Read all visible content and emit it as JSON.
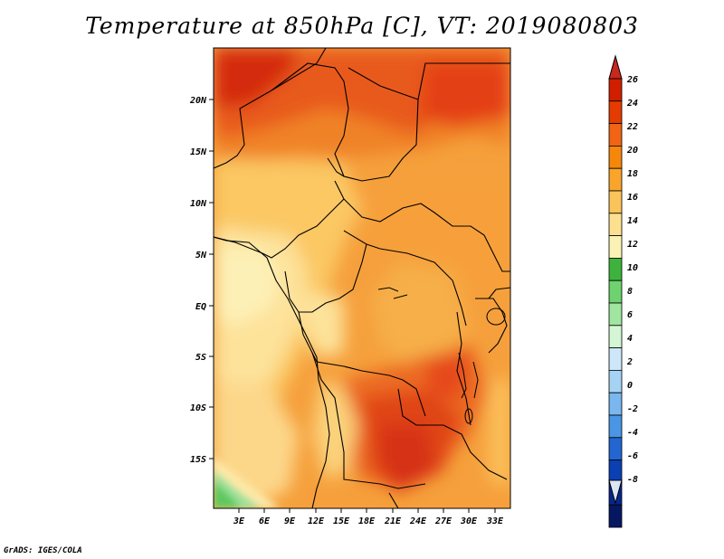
{
  "title": "Temperature at 850hPa [C], VT: 2019080803",
  "credit": "GrADS: IGES/COLA",
  "map": {
    "variable": "Temperature at 850hPa",
    "units": "C",
    "valid_time": "2019080803",
    "lat_ticks": [
      "20N",
      "15N",
      "10N",
      "5N",
      "EQ",
      "5S",
      "10S",
      "15S"
    ],
    "lon_ticks": [
      "3E",
      "6E",
      "9E",
      "12E",
      "15E",
      "18E",
      "21E",
      "24E",
      "27E",
      "30E",
      "33E"
    ],
    "lat_range": [
      -19.5,
      24.5
    ],
    "lon_range": [
      0,
      34.5
    ]
  },
  "colorbar": {
    "labels": [
      "26",
      "24",
      "22",
      "20",
      "18",
      "16",
      "14",
      "12",
      "10",
      "8",
      "6",
      "4",
      "2",
      "0",
      "-2",
      "-4",
      "-6",
      "-8"
    ],
    "colors": [
      "#d01e00",
      "#e43c00",
      "#f06414",
      "#f5870a",
      "#f9a52b",
      "#fbc45a",
      "#fde08f",
      "#faf2b5",
      "#3db33d",
      "#6ed26e",
      "#a0e6a0",
      "#d4f6d4",
      "#cde7f8",
      "#a6d2f4",
      "#79b7ee",
      "#4a95e4",
      "#2366d2",
      "#0b3fb4",
      "#07258e",
      "#061762"
    ],
    "over_color": "#c8281e",
    "under_color": "#dce6f5"
  }
}
